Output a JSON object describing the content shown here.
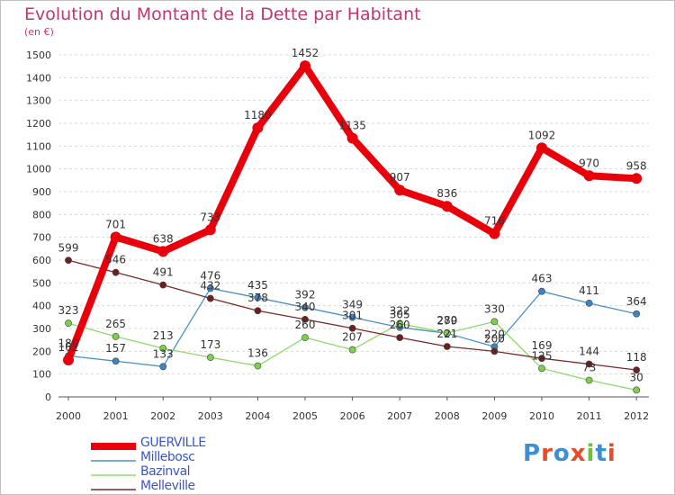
{
  "header": {
    "title": "Evolution du Montant de la Dette par Habitant",
    "unit": "(en €)"
  },
  "brand": {
    "logo_text": "Proxiti",
    "letter_colors": [
      "#3d8fd1",
      "#e94b2a",
      "#3d8fd1",
      "#e94b2a",
      "#6fbf3a",
      "#3d8fd1",
      "#e94b2a"
    ]
  },
  "chart_data": {
    "type": "line",
    "title": "Evolution du Montant de la Dette par Habitant",
    "subtitle": "(en €)",
    "xlabel": "",
    "ylabel": "",
    "x": [
      "2000",
      "2001",
      "2002",
      "2003",
      "2004",
      "2005",
      "2006",
      "2007",
      "2008",
      "2009",
      "2010",
      "2011",
      "2012"
    ],
    "ylim": [
      0,
      1500
    ],
    "y_ticks": [
      0,
      100,
      200,
      300,
      400,
      500,
      600,
      700,
      800,
      900,
      1000,
      1100,
      1200,
      1300,
      1400,
      1500
    ],
    "grid": "horizontal",
    "legend_position": "bottom-left",
    "series": [
      {
        "name": "GUERVILLE",
        "color": "#e8000b",
        "thick": true,
        "values": [
          162,
          701,
          638,
          733,
          1180,
          1452,
          1135,
          907,
          836,
          716,
          1092,
          970,
          958
        ],
        "labels": [
          "162",
          "701",
          "638",
          "733",
          "1180",
          "1452",
          "1135",
          "907",
          "836",
          "716",
          "1092",
          "970",
          "958"
        ]
      },
      {
        "name": "Millebosc",
        "color": "#4a90c8",
        "marker": "#3d84c6",
        "values": [
          180,
          157,
          133,
          476,
          435,
          392,
          349,
          305,
          279,
          220,
          463,
          411,
          364
        ],
        "labels": [
          "180",
          "157",
          "133",
          "476",
          "435",
          "392",
          "349",
          "305",
          "279",
          "220",
          "463",
          "411",
          "364"
        ]
      },
      {
        "name": "Bazinval",
        "color": "#8fd96a",
        "marker": "#7dcf4c",
        "values": [
          323,
          265,
          213,
          173,
          136,
          260,
          207,
          322,
          280,
          330,
          125,
          73,
          30
        ],
        "labels": [
          "323",
          "265",
          "213",
          "173",
          "136",
          "260",
          "207",
          "322",
          "280",
          "330",
          "125",
          "73",
          "30"
        ]
      },
      {
        "name": "Melleville",
        "color": "#7a2a2a",
        "marker": "#6b1f1f",
        "values": [
          599,
          546,
          491,
          432,
          378,
          340,
          301,
          260,
          221,
          200,
          169,
          144,
          118
        ],
        "labels": [
          "599",
          "546",
          "491",
          "432",
          "378",
          "340",
          "301",
          "260",
          "221",
          "200",
          "169",
          "144",
          "118"
        ]
      }
    ]
  }
}
